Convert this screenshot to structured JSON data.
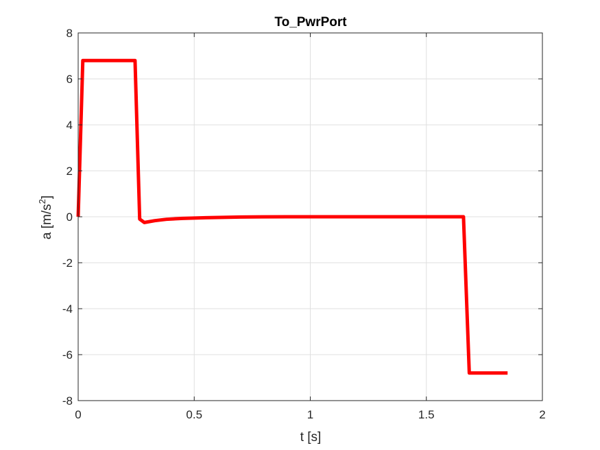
{
  "chart_data": {
    "type": "line",
    "title": "To_PwrPort",
    "xlabel": "t [s]",
    "ylabel": {
      "base": "a [m/s",
      "superscript": "2",
      "close": "]"
    },
    "xlim": [
      0,
      2
    ],
    "ylim": [
      -8,
      8
    ],
    "xticks": [
      "0",
      "0.5",
      "1",
      "1.5",
      "2"
    ],
    "yticks": [
      "-8",
      "-6",
      "-4",
      "-2",
      "0",
      "2",
      "4",
      "6",
      "8"
    ],
    "grid": true,
    "series": [
      {
        "color": "#ff0000",
        "x": [
          0,
          0.02,
          0.245,
          0.265,
          0.285,
          0.33,
          0.38,
          0.45,
          0.55,
          0.7,
          0.9,
          1.2,
          1.5,
          1.66,
          1.685,
          1.85
        ],
        "y": [
          0,
          6.8,
          6.8,
          -0.1,
          -0.25,
          -0.17,
          -0.11,
          -0.07,
          -0.04,
          -0.01,
          0,
          0,
          0,
          0,
          -6.8,
          -6.8
        ]
      }
    ]
  }
}
